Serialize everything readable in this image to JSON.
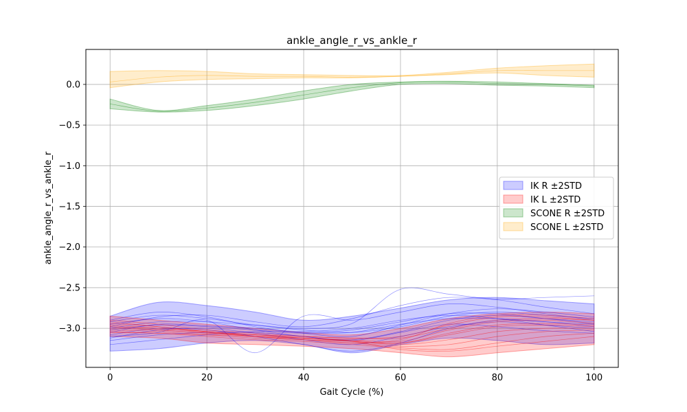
{
  "chart_data": {
    "type": "area",
    "title": "ankle_angle_r_vs_ankle_r",
    "xlabel": "Gait Cycle (%)",
    "ylabel": "ankle_angle_r_vs_ankle_r",
    "xlim": [
      -5,
      105
    ],
    "ylim": [
      -3.48,
      0.43
    ],
    "xticks": [
      0,
      20,
      40,
      60,
      80,
      100
    ],
    "xtick_labels": [
      "0",
      "20",
      "40",
      "60",
      "80",
      "100"
    ],
    "yticks": [
      0.0,
      -0.5,
      -1.0,
      -1.5,
      -2.0,
      -2.5,
      -3.0
    ],
    "ytick_labels": [
      "0.0",
      "−0.5",
      "−1.0",
      "−1.5",
      "−2.0",
      "−2.5",
      "−3.0"
    ],
    "grid": true,
    "legend_position": "center-right",
    "x": [
      0,
      10,
      20,
      30,
      40,
      50,
      60,
      70,
      80,
      90,
      100
    ],
    "series": [
      {
        "name": "IK R ±2STD",
        "color": "#0000ff",
        "upper": [
          -2.85,
          -2.68,
          -2.72,
          -2.8,
          -2.9,
          -2.85,
          -2.75,
          -2.65,
          -2.62,
          -2.66,
          -2.7
        ],
        "lower": [
          -3.28,
          -3.25,
          -3.18,
          -3.15,
          -3.2,
          -3.3,
          -3.2,
          -3.12,
          -3.15,
          -3.2,
          -3.18
        ],
        "trials": [
          [
            -3.05,
            -2.95,
            -2.97,
            -3.0,
            -3.05,
            -3.05,
            -2.95,
            -2.88,
            -2.88,
            -2.92,
            -2.95
          ],
          [
            -2.92,
            -2.84,
            -2.88,
            -2.96,
            -3.02,
            -3.05,
            -2.98,
            -2.85,
            -2.8,
            -2.84,
            -2.88
          ],
          [
            -3.15,
            -3.08,
            -3.05,
            -3.05,
            -3.1,
            -3.15,
            -3.05,
            -2.95,
            -2.98,
            -3.03,
            -3.06
          ],
          [
            -2.98,
            -2.86,
            -2.84,
            -2.92,
            -2.98,
            -2.88,
            -2.72,
            -2.62,
            -2.65,
            -2.74,
            -2.82
          ],
          [
            -3.12,
            -3.02,
            -3.0,
            -3.06,
            -3.14,
            -3.2,
            -3.1,
            -2.98,
            -2.92,
            -2.96,
            -3.0
          ],
          [
            -2.9,
            -2.8,
            -2.86,
            -2.98,
            -3.06,
            -3.1,
            -2.96,
            -2.82,
            -2.76,
            -2.8,
            -2.86
          ],
          [
            -3.2,
            -3.14,
            -3.08,
            -3.04,
            -3.04,
            -3.0,
            -2.9,
            -2.84,
            -2.88,
            -2.96,
            -3.04
          ],
          [
            -3.0,
            -2.92,
            -2.92,
            -2.96,
            -3.0,
            -2.94,
            -2.52,
            -2.58,
            -2.64,
            -2.62,
            -2.6
          ],
          [
            -3.08,
            -3.0,
            -3.02,
            -3.1,
            -3.2,
            -3.28,
            -3.18,
            -3.0,
            -2.9,
            -2.92,
            -2.98
          ],
          [
            -2.95,
            -2.88,
            -2.92,
            -3.02,
            -3.1,
            -3.14,
            -3.04,
            -2.9,
            -2.84,
            -2.88,
            -2.92
          ],
          [
            -3.1,
            -3.05,
            -2.9,
            -3.3,
            -2.85,
            -2.9,
            -2.8,
            -2.7,
            -2.74,
            -2.82,
            -2.9
          ],
          [
            -3.02,
            -2.96,
            -2.98,
            -3.02,
            -3.06,
            -3.02,
            -2.92,
            -2.82,
            -2.82,
            -2.88,
            -2.94
          ]
        ]
      },
      {
        "name": "IK L ±2STD",
        "color": "#ff0000",
        "upper": [
          -2.85,
          -2.9,
          -2.95,
          -3.0,
          -3.05,
          -3.08,
          -3.0,
          -2.88,
          -2.82,
          -2.8,
          -2.82
        ],
        "lower": [
          -3.1,
          -3.12,
          -3.18,
          -3.2,
          -3.22,
          -3.25,
          -3.3,
          -3.35,
          -3.3,
          -3.25,
          -3.2
        ],
        "trials": [
          [
            -2.96,
            -3.0,
            -3.05,
            -3.1,
            -3.12,
            -3.15,
            -3.18,
            -3.08,
            -2.98,
            -2.96,
            -2.98
          ],
          [
            -2.9,
            -2.95,
            -3.02,
            -3.06,
            -3.1,
            -3.12,
            -3.12,
            -3.0,
            -2.9,
            -2.88,
            -2.9
          ],
          [
            -3.02,
            -3.04,
            -3.08,
            -3.12,
            -3.14,
            -3.18,
            -3.22,
            -3.2,
            -3.1,
            -3.04,
            -3.02
          ],
          [
            -2.98,
            -3.02,
            -3.06,
            -3.08,
            -3.12,
            -3.14,
            -3.16,
            -3.02,
            -2.92,
            -2.9,
            -2.94
          ],
          [
            -3.05,
            -3.06,
            -3.1,
            -3.14,
            -3.16,
            -3.2,
            -3.24,
            -3.26,
            -3.18,
            -3.1,
            -3.06
          ],
          [
            -2.92,
            -2.98,
            -3.04,
            -3.08,
            -3.1,
            -3.12,
            -3.1,
            -2.96,
            -2.86,
            -2.86,
            -2.9
          ],
          [
            -3.0,
            -3.02,
            -3.06,
            -3.1,
            -3.14,
            -3.16,
            -3.2,
            -3.14,
            -3.04,
            -3.0,
            -3.0
          ],
          [
            -2.94,
            -2.98,
            -3.04,
            -3.1,
            -3.14,
            -3.18,
            -3.14,
            -2.94,
            -2.84,
            -2.84,
            -2.88
          ],
          [
            -3.04,
            -3.06,
            -3.08,
            -3.1,
            -3.12,
            -3.16,
            -3.26,
            -3.28,
            -3.22,
            -3.16,
            -3.1
          ],
          [
            -2.98,
            -3.0,
            -3.04,
            -3.08,
            -3.12,
            -3.16,
            -3.18,
            -3.06,
            -2.96,
            -2.94,
            -2.96
          ]
        ]
      },
      {
        "name": "SCONE R ±2STD",
        "color": "#008000",
        "upper": [
          -0.18,
          -0.32,
          -0.26,
          -0.18,
          -0.08,
          0.0,
          0.03,
          0.04,
          0.03,
          0.01,
          -0.01
        ],
        "lower": [
          -0.3,
          -0.34,
          -0.32,
          -0.26,
          -0.18,
          -0.08,
          0.0,
          0.01,
          -0.01,
          -0.02,
          -0.04
        ],
        "trials": [
          [
            -0.24,
            -0.33,
            -0.29,
            -0.22,
            -0.13,
            -0.04,
            0.02,
            0.03,
            0.01,
            0.0,
            -0.02
          ]
        ]
      },
      {
        "name": "SCONE L ±2STD",
        "color": "#ffa500",
        "upper": [
          0.16,
          0.17,
          0.16,
          0.13,
          0.12,
          0.11,
          0.11,
          0.15,
          0.2,
          0.23,
          0.25
        ],
        "lower": [
          -0.04,
          0.03,
          0.06,
          0.07,
          0.08,
          0.08,
          0.1,
          0.12,
          0.14,
          0.11,
          0.09
        ],
        "trials": [
          [
            0.03,
            0.09,
            0.11,
            0.1,
            0.1,
            0.09,
            0.1,
            0.13,
            0.17,
            0.17,
            0.17
          ]
        ]
      }
    ]
  }
}
